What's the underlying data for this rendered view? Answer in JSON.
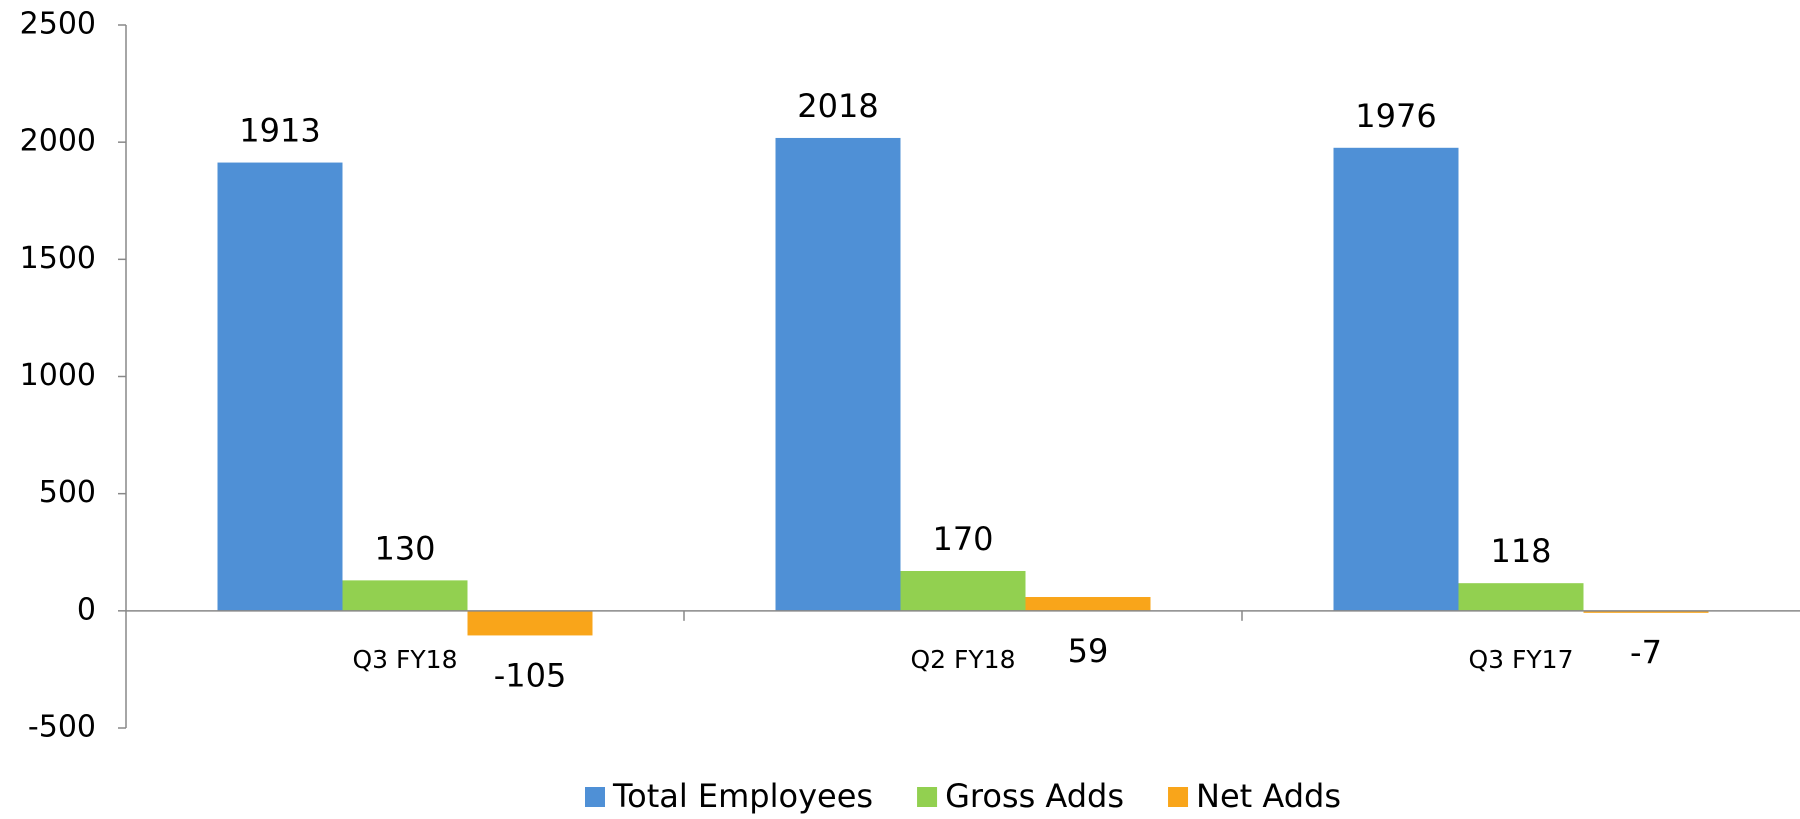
{
  "chart_data": {
    "type": "bar",
    "categories": [
      "Q3 FY18",
      "Q2 FY18",
      "Q3 FY17"
    ],
    "series": [
      {
        "name": "Total Employees",
        "color": "#4f90d6",
        "values": [
          1913,
          2018,
          1976
        ]
      },
      {
        "name": "Gross Adds",
        "color": "#92d050",
        "values": [
          130,
          170,
          118
        ]
      },
      {
        "name": "Net Adds",
        "color": "#f9a51a",
        "values": [
          -105,
          59,
          -7
        ]
      }
    ],
    "ylim": [
      -500,
      2500
    ],
    "yticks": [
      -500,
      0,
      500,
      1000,
      1500,
      2000,
      2500
    ],
    "grid": false,
    "legend": "bottom"
  }
}
